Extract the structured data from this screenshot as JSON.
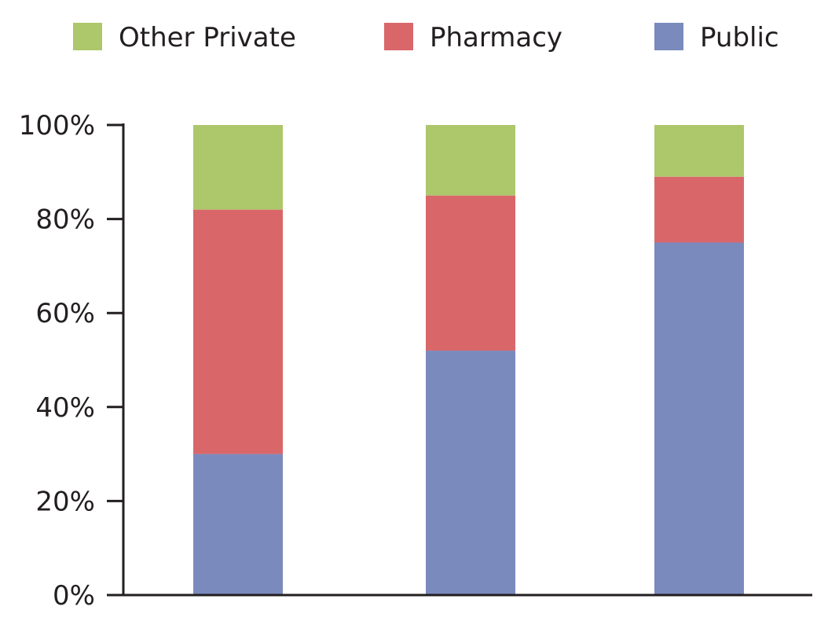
{
  "chart_data": {
    "type": "bar",
    "stacked": true,
    "title": "",
    "xlabel": "",
    "ylabel": "",
    "categories": [
      "",
      "",
      ""
    ],
    "ylim": [
      0,
      100
    ],
    "yticks": [
      0,
      20,
      40,
      60,
      80,
      100
    ],
    "ytick_labels": [
      "0%",
      "20%",
      "40%",
      "60%",
      "80%",
      "100%"
    ],
    "grid": false,
    "legend_position": "top",
    "series": [
      {
        "name": "Public",
        "color": "#7a8abd",
        "values": [
          30,
          52,
          75
        ]
      },
      {
        "name": "Pharmacy",
        "color": "#d9676a",
        "values": [
          52,
          33,
          14
        ]
      },
      {
        "name": "Other Private",
        "color": "#adc76b",
        "values": [
          18,
          15,
          11
        ]
      }
    ],
    "legend_order": [
      "Other Private",
      "Pharmacy",
      "Public"
    ]
  }
}
